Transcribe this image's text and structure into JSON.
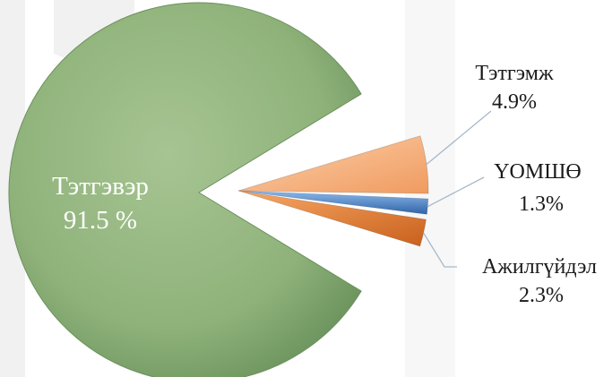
{
  "chart_data": {
    "type": "pie",
    "exploded": true,
    "style": "3d-bevel",
    "legend": "none",
    "slices": [
      {
        "label": "Тэтгэвэр",
        "value": 91.5,
        "value_text": "91.5 %",
        "color": "#8fb27a"
      },
      {
        "label": "Тэтгэмж",
        "value": 4.9,
        "value_text": "4.9%",
        "color": "#f6b07c"
      },
      {
        "label": "ҮОМШӨ",
        "value": 1.3,
        "value_text": "1.3%",
        "color": "#4f86c6"
      },
      {
        "label": "Ажилгүйдэл",
        "value": 2.3,
        "value_text": "2.3%",
        "color": "#ee8236"
      }
    ]
  }
}
